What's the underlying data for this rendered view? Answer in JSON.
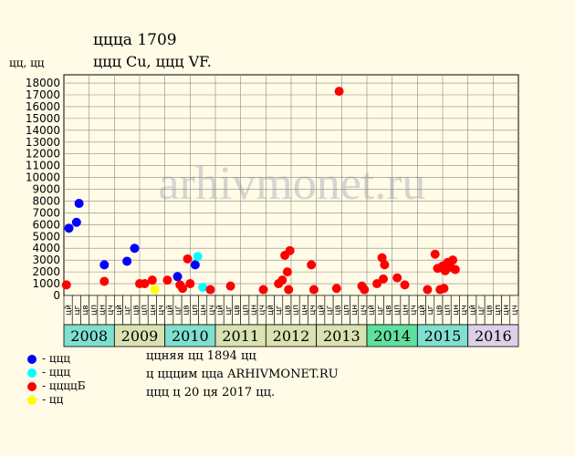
{
  "header": {
    "title": "ццца 1709",
    "subtitle": "ццц Cu, ццц VF.",
    "y_unit": "цц, цц"
  },
  "watermark": "arhivmonet.ru",
  "legend": [
    {
      "label": "- ццц",
      "color": "#0000ff"
    },
    {
      "label": "- ццц",
      "color": "#00ffff"
    },
    {
      "label": "- ццццБ",
      "color": "#ff0000"
    },
    {
      "label": "- цц",
      "color": "#ffff00"
    }
  ],
  "notes": {
    "line1": "ццняя цц 1894 цц",
    "line2": "ц цццим ццa ARHIVMONET.RU",
    "line3": "ццц ц 20 ця 2017 цц."
  },
  "chart_data": {
    "type": "scatter",
    "ylim": [
      0,
      18000
    ],
    "yticks": [
      0,
      1000,
      2000,
      3000,
      4000,
      5000,
      6000,
      7000,
      8000,
      9000,
      10000,
      11000,
      12000,
      13000,
      14000,
      15000,
      16000,
      17000,
      18000
    ],
    "grid": true,
    "years": [
      "2008",
      "2009",
      "2010",
      "2011",
      "2012",
      "2013",
      "2014",
      "2015",
      "2016"
    ],
    "year_colors": [
      "#7fe0d0",
      "#d9e2b0",
      "#7fe0d0",
      "#d9e2b0",
      "#d9e2b0",
      "#d9e2b0",
      "#5fe0a0",
      "#7fe0d0",
      "#ddd0e8"
    ],
    "month_labels": [
      "цй",
      "цг",
      "цв",
      "цп",
      "цн",
      "цч",
      "цй",
      "цг",
      "цв",
      "цп",
      "цн",
      "цч",
      "цй",
      "цг",
      "цв",
      "цп",
      "цн",
      "цч",
      "цй",
      "цг",
      "цв",
      "цп",
      "цн",
      "цч",
      "цй",
      "цг",
      "цв",
      "цп",
      "цн",
      "цч",
      "цй",
      "цг",
      "цв",
      "цп",
      "цн",
      "цч",
      "цй",
      "цг",
      "цв",
      "цп",
      "цн",
      "цч",
      "цй",
      "цг",
      "цв",
      "цп",
      "цн",
      "цч",
      "цй",
      "цг",
      "цв",
      "цп",
      "цн",
      "цч"
    ],
    "series": [
      {
        "color": "#0000ff",
        "points": [
          [
            0.2,
            5700
          ],
          [
            0.5,
            6200
          ],
          [
            0.6,
            7800
          ],
          [
            1.6,
            2600
          ],
          [
            2.5,
            2900
          ],
          [
            2.8,
            4000
          ],
          [
            4.5,
            1600
          ],
          [
            5.2,
            2600
          ]
        ]
      },
      {
        "color": "#00ffff",
        "points": [
          [
            5.3,
            3300
          ],
          [
            5.5,
            700
          ]
        ]
      },
      {
        "color": "#ff0000",
        "points": [
          [
            0.1,
            900
          ],
          [
            1.6,
            1200
          ],
          [
            3.0,
            1000
          ],
          [
            3.2,
            1000
          ],
          [
            3.5,
            1300
          ],
          [
            4.1,
            1300
          ],
          [
            4.6,
            900
          ],
          [
            4.7,
            600
          ],
          [
            4.9,
            3100
          ],
          [
            5.0,
            1000
          ],
          [
            5.8,
            500
          ],
          [
            6.6,
            800
          ],
          [
            7.9,
            500
          ],
          [
            8.5,
            1000
          ],
          [
            8.65,
            1300
          ],
          [
            8.75,
            3400
          ],
          [
            8.85,
            2000
          ],
          [
            8.9,
            500
          ],
          [
            8.95,
            3800
          ],
          [
            9.8,
            2600
          ],
          [
            9.9,
            500
          ],
          [
            10.8,
            600
          ],
          [
            10.9,
            17300
          ],
          [
            11.8,
            800
          ],
          [
            11.9,
            500
          ],
          [
            12.4,
            1000
          ],
          [
            12.65,
            1400
          ],
          [
            12.6,
            3200
          ],
          [
            12.7,
            2600
          ],
          [
            13.2,
            1500
          ],
          [
            13.5,
            900
          ],
          [
            14.4,
            500
          ],
          [
            14.7,
            3500
          ],
          [
            14.8,
            2300
          ],
          [
            14.9,
            500
          ],
          [
            15.0,
            2500
          ],
          [
            15.05,
            600
          ],
          [
            15.1,
            2100
          ],
          [
            15.2,
            2800
          ],
          [
            15.3,
            2400
          ],
          [
            15.4,
            3000
          ],
          [
            15.5,
            2200
          ]
        ]
      },
      {
        "color": "#ffff00",
        "points": [
          [
            3.6,
            500
          ]
        ]
      }
    ]
  }
}
